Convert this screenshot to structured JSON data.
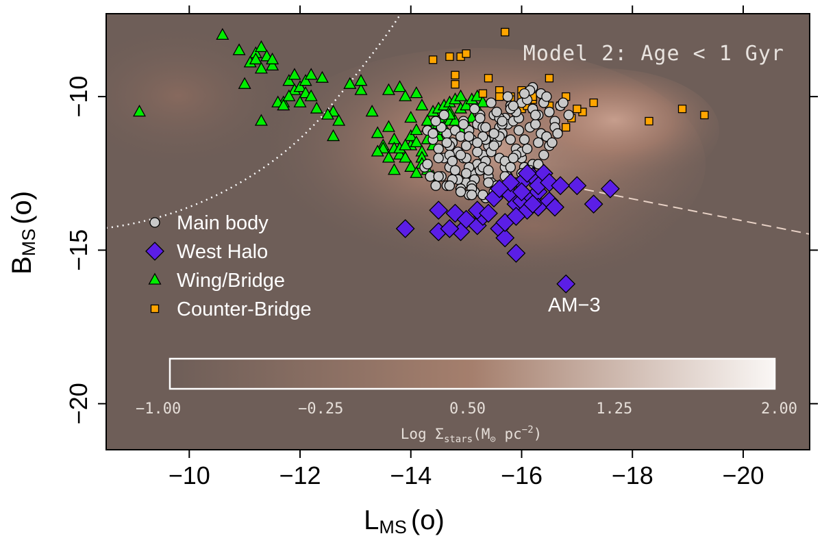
{
  "chart_data": {
    "type": "scatter",
    "title": "Model 2: Age < 1 Gyr",
    "xlabel": "L",
    "xlabel_sub": "MS",
    "xlabel_unit": "(o)",
    "ylabel": "B",
    "ylabel_sub": "MS",
    "ylabel_unit": "(o)",
    "xlim": [
      -8.5,
      -21.2
    ],
    "ylim": [
      -7.3,
      -21.5
    ],
    "x_ticks": [
      -10,
      -12,
      -14,
      -16,
      -18,
      -20
    ],
    "x_tick_labels": [
      "−10",
      "−12",
      "−14",
      "−16",
      "−18",
      "−20"
    ],
    "y_ticks": [
      -10,
      -15,
      -20
    ],
    "y_tick_labels": [
      "−10",
      "−15",
      "−20"
    ],
    "grid": false,
    "legend_position": "left",
    "background": "log stellar surface density map (brown to white)",
    "colorbar": {
      "label_prefix": "Log Σ",
      "label_sub": "stars",
      "label_mid": "(M",
      "label_sun": "⊙",
      "label_end": " pc",
      "label_sup": "−2",
      "label_close": ")",
      "ticks": [
        "−1.00",
        "−0.25",
        "0.50",
        "1.25",
        "2.00"
      ],
      "range": [
        -1.0,
        2.0
      ],
      "color_low": "#6e5e58",
      "color_high": "#f7f3f0"
    },
    "annotations": [
      {
        "text": "AM−3",
        "x": -16.95,
        "y": -17.0
      }
    ],
    "series": [
      {
        "name": "Main body",
        "marker": "circle",
        "color": "#c8c8c8",
        "x": [
          -15.8,
          -15.9,
          -16.0,
          -15.7,
          -15.6,
          -15.5,
          -15.4,
          -15.3,
          -15.2,
          -15.1,
          -15.0,
          -14.9,
          -14.8,
          -14.7,
          -14.6,
          -14.5,
          -14.4,
          -14.3,
          -16.1,
          -16.2,
          -16.3,
          -16.4,
          -16.5,
          -16.6,
          -16.7,
          -15.75,
          -15.65,
          -15.55,
          -15.45,
          -15.35,
          -15.25,
          -15.15,
          -15.05,
          -14.95,
          -14.85,
          -14.75,
          -14.65,
          -14.55,
          -14.45,
          -15.85,
          -15.95,
          -16.05,
          -16.15,
          -16.25,
          -16.35,
          -15.9,
          -15.6,
          -15.3,
          -15.0,
          -14.7,
          -14.4,
          -16.0,
          -15.7,
          -15.4,
          -15.1,
          -14.8,
          -14.5,
          -16.3,
          -16.0,
          -15.7,
          -15.4,
          -15.1,
          -14.8,
          -14.6,
          -15.5,
          -15.2,
          -14.9,
          -15.8,
          -16.1,
          -16.4,
          -15.3,
          -15.0,
          -14.7,
          -15.6,
          -15.9,
          -16.2,
          -15.45,
          -15.15,
          -14.85,
          -15.75,
          -16.05,
          -15.35,
          -15.05,
          -14.75,
          -15.65,
          -15.95,
          -16.25,
          -15.55,
          -15.25,
          -14.95,
          -15.85,
          -16.15,
          -16.45,
          -15.2,
          -15.5,
          -15.8,
          -15.1,
          -15.4,
          -15.7,
          -16.0,
          -15.0,
          -15.3,
          -15.6,
          -15.9,
          -14.9,
          -15.2,
          -15.5,
          -15.8,
          -16.5,
          -16.6,
          -16.4,
          -16.2,
          -14.35,
          -14.25,
          -14.45,
          -14.55,
          -14.65,
          -14.75,
          -15.05,
          -15.35,
          -15.65,
          -15.95,
          -16.55,
          -16.35,
          -16.15,
          -16.75,
          -16.45,
          -16.65,
          -16.85,
          -16.3,
          -16.1,
          -15.9,
          -15.7,
          -15.5,
          -15.3,
          -15.1,
          -14.9,
          -14.7,
          -14.5,
          -14.3,
          -15.15,
          -15.45,
          -15.75,
          -16.05,
          -15.25,
          -15.55,
          -15.85,
          -14.95,
          -14.65,
          -15.05,
          -15.35,
          -15.65
        ],
        "y": [
          -10.3,
          -10.5,
          -10.2,
          -10.7,
          -11.0,
          -11.3,
          -11.6,
          -11.9,
          -12.2,
          -12.5,
          -12.8,
          -13.0,
          -12.6,
          -12.3,
          -12.0,
          -11.7,
          -11.4,
          -11.1,
          -10.1,
          -10.4,
          -10.6,
          -10.2,
          -10.5,
          -10.8,
          -10.3,
          -10.9,
          -11.2,
          -11.5,
          -11.8,
          -12.1,
          -12.4,
          -12.7,
          -12.3,
          -12.0,
          -11.8,
          -11.5,
          -11.2,
          -11.0,
          -10.8,
          -10.8,
          -11.1,
          -11.4,
          -11.0,
          -10.9,
          -11.2,
          -11.7,
          -12.0,
          -12.3,
          -12.0,
          -11.6,
          -11.2,
          -12.0,
          -12.3,
          -12.6,
          -12.9,
          -12.4,
          -12.0,
          -11.5,
          -11.8,
          -12.1,
          -12.4,
          -11.4,
          -11.1,
          -10.6,
          -10.6,
          -10.9,
          -11.3,
          -11.4,
          -11.7,
          -11.9,
          -11.0,
          -11.6,
          -11.9,
          -11.3,
          -11.9,
          -12.2,
          -12.8,
          -13.1,
          -12.7,
          -12.6,
          -12.3,
          -11.4,
          -11.1,
          -12.1,
          -10.9,
          -10.7,
          -10.6,
          -12.9,
          -10.6,
          -10.8,
          -12.0,
          -12.4,
          -11.3,
          -11.8,
          -11.6,
          -12.3,
          -13.0,
          -12.8,
          -12.6,
          -12.5,
          -12.5,
          -11.3,
          -10.7,
          -10.5,
          -11.9,
          -11.5,
          -11.2,
          -10.4,
          -11.6,
          -11.0,
          -10.2,
          -9.7,
          -12.6,
          -12.3,
          -12.9,
          -12.6,
          -12.9,
          -12.7,
          -13.2,
          -13.3,
          -13.1,
          -12.9,
          -11.5,
          -9.9,
          -9.8,
          -10.2,
          -10.0,
          -11.2,
          -10.6,
          -12.2,
          -12.6,
          -12.8,
          -13.0,
          -13.1,
          -13.2,
          -13.2,
          -13.1,
          -12.9,
          -12.6,
          -12.2,
          -10.4,
          -10.2,
          -10.0,
          -9.9,
          -10.7,
          -10.5,
          -10.3,
          -10.9,
          -11.5,
          -11.3,
          -11.0,
          -10.8
        ]
      },
      {
        "name": "West Halo",
        "marker": "diamond",
        "color": "#5b1ee6",
        "x": [
          -13.9,
          -14.5,
          -14.5,
          -14.9,
          -14.8,
          -15.2,
          -15.3,
          -15.2,
          -15.5,
          -15.6,
          -15.7,
          -15.7,
          -15.8,
          -15.9,
          -15.9,
          -16.0,
          -16.0,
          -16.1,
          -16.2,
          -16.2,
          -16.3,
          -16.3,
          -16.4,
          -16.5,
          -16.6,
          -15.8,
          -16.0,
          -16.3,
          -16.5,
          -15.9,
          -16.1,
          -15.6,
          -16.2,
          -17.0,
          -17.3,
          -17.6,
          -16.7,
          -14.7,
          -15.0,
          -15.4,
          -16.8
        ],
        "y": [
          -14.3,
          -13.7,
          -14.4,
          -14.4,
          -13.8,
          -14.2,
          -13.9,
          -13.7,
          -13.3,
          -14.3,
          -14.6,
          -14.1,
          -13.2,
          -15.1,
          -13.5,
          -13.4,
          -12.8,
          -13.7,
          -13.3,
          -12.6,
          -13.1,
          -13.6,
          -12.5,
          -13.4,
          -13.6,
          -12.8,
          -13.1,
          -12.9,
          -12.8,
          -13.9,
          -12.5,
          -13.0,
          -13.5,
          -12.9,
          -13.5,
          -13.0,
          -12.9,
          -14.3,
          -14.0,
          -13.8,
          -16.1
        ]
      },
      {
        "name": "Wing/Bridge",
        "marker": "triangle",
        "color": "#00ee00",
        "x": [
          -9.1,
          -10.6,
          -11.2,
          -10.9,
          -11.0,
          -11.1,
          -11.2,
          -11.3,
          -11.3,
          -11.4,
          -11.5,
          -11.5,
          -11.7,
          -11.8,
          -11.9,
          -11.9,
          -12.0,
          -12.1,
          -12.1,
          -12.2,
          -12.2,
          -12.4,
          -12.6,
          -12.6,
          -12.9,
          -13.1,
          -13.1,
          -13.3,
          -13.4,
          -13.6,
          -13.6,
          -13.7,
          -13.8,
          -13.9,
          -14.0,
          -14.0,
          -14.1,
          -14.2,
          -11.3,
          -11.6,
          -11.7,
          -11.8,
          -12.0,
          -12.3,
          -12.5,
          -12.7,
          -13.5,
          -13.5,
          -13.4,
          -13.7,
          -13.8,
          -13.9,
          -14.0,
          -14.0,
          -14.1,
          -14.1,
          -14.2,
          -14.2,
          -14.3,
          -14.3,
          -14.3,
          -14.4,
          -14.4,
          -14.4,
          -14.5,
          -14.5,
          -14.5,
          -14.6,
          -14.6,
          -14.6,
          -14.7,
          -14.7,
          -14.7,
          -14.8,
          -14.9,
          -14.9,
          -15.0,
          -15.1,
          -15.2,
          -15.2,
          -15.3,
          -13.6,
          -13.8,
          -14.0,
          -14.2,
          -14.1,
          -13.9,
          -13.7,
          -14.3,
          -14.4,
          -14.9,
          -15.1,
          -15.0,
          -14.8,
          -14.6,
          -14.7
        ],
        "y": [
          -10.5,
          -8.0,
          -8.6,
          -8.5,
          -9.6,
          -8.9,
          -8.8,
          -8.4,
          -9.1,
          -8.7,
          -9.0,
          -8.8,
          -10.2,
          -9.5,
          -9.8,
          -9.3,
          -9.7,
          -9.5,
          -9.9,
          -10.0,
          -9.3,
          -9.4,
          -10.5,
          -11.3,
          -9.6,
          -9.8,
          -9.5,
          -10.5,
          -11.2,
          -9.8,
          -11.0,
          -11.4,
          -9.7,
          -10.0,
          -10.7,
          -11.3,
          -9.9,
          -10.3,
          -10.8,
          -10.2,
          -10.3,
          -10.0,
          -10.2,
          -10.4,
          -10.6,
          -10.8,
          -11.6,
          -11.7,
          -11.8,
          -11.7,
          -11.9,
          -12.0,
          -11.6,
          -11.3,
          -11.1,
          -11.5,
          -11.8,
          -12.0,
          -11.0,
          -10.8,
          -11.4,
          -10.5,
          -11.1,
          -11.6,
          -10.4,
          -10.9,
          -11.3,
          -10.3,
          -10.7,
          -11.0,
          -10.2,
          -10.5,
          -10.8,
          -10.1,
          -10.0,
          -10.4,
          -10.3,
          -10.1,
          -10.0,
          -10.4,
          -10.2,
          -12.0,
          -11.7,
          -12.3,
          -12.2,
          -12.5,
          -11.6,
          -12.4,
          -12.4,
          -12.6,
          -11.1,
          -10.7,
          -10.9,
          -10.8,
          -11.1,
          -10.6
        ]
      },
      {
        "name": "Counter-Bridge",
        "marker": "square",
        "color": "#ffa500",
        "x": [
          -15.7,
          -14.4,
          -14.7,
          -14.9,
          -15.0,
          -14.8,
          -15.4,
          -14.8,
          -15.6,
          -16.0,
          -16.5,
          -15.3,
          -15.6,
          -15.8,
          -16.0,
          -16.2,
          -16.2,
          -16.4,
          -16.8,
          -16.0,
          -16.5,
          -16.7,
          -17.1,
          -17.3,
          -17.0,
          -16.9,
          -16.8,
          -18.3,
          -18.9,
          -19.3,
          -15.8,
          -16.1,
          -16.2
        ],
        "y": [
          -7.9,
          -8.8,
          -8.7,
          -8.7,
          -8.6,
          -9.3,
          -9.4,
          -9.6,
          -9.8,
          -9.8,
          -9.4,
          -9.9,
          -10.0,
          -10.0,
          -10.0,
          -10.1,
          -10.0,
          -10.0,
          -10.0,
          -10.4,
          -10.3,
          -10.3,
          -10.5,
          -10.2,
          -10.4,
          -10.7,
          -11.0,
          -10.8,
          -10.4,
          -10.6,
          -10.1,
          -10.3,
          -10.4
        ]
      }
    ]
  }
}
